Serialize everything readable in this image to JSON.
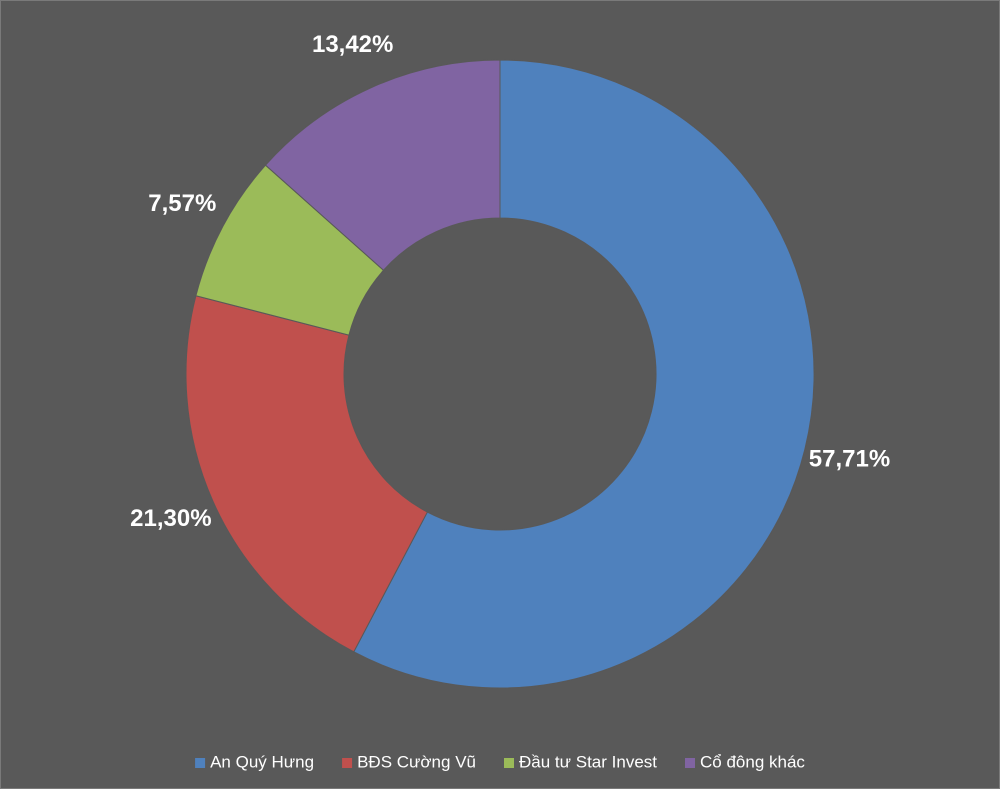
{
  "chart_data": {
    "type": "pie",
    "categories": [
      "An Quý Hưng",
      "BĐS Cường Vũ",
      "Đầu tư Star Invest",
      "Cổ đông khác"
    ],
    "values": [
      57.71,
      21.3,
      7.57,
      13.42
    ],
    "value_labels": [
      "57,71%",
      "21,30%",
      "7,57%",
      "13,42%"
    ],
    "colors": [
      "#4f81bd",
      "#c0504d",
      "#9bbb59",
      "#8064a2"
    ],
    "donut": true,
    "legend": "bottom"
  }
}
